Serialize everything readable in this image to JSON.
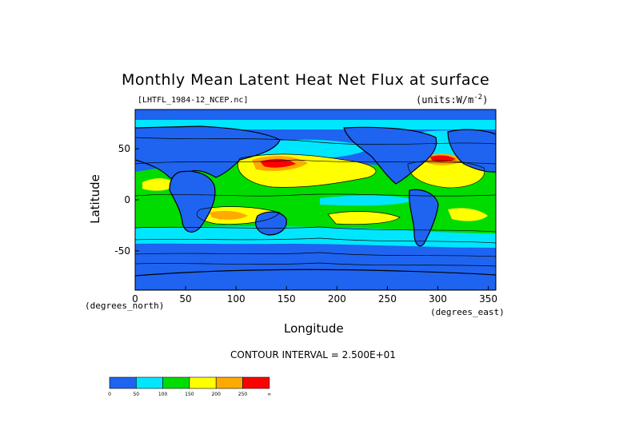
{
  "chart_data": {
    "type": "heatmap",
    "title": "Monthly Mean Latent Heat Net Flux at surface",
    "subtitle_left": "[LHTFL_1984-12_NCEP.nc]",
    "subtitle_right": "(units:W/m^2)",
    "units_prefix": "(units:W/m",
    "units_sup": "-2",
    "units_suffix": ")",
    "xlabel": "Longitude",
    "ylabel": "Latitude",
    "x_unit_label": "(degrees_east)",
    "y_unit_label": "(degrees_north)",
    "xlim": [
      0,
      357.5
    ],
    "ylim": [
      -88.5,
      88.5
    ],
    "x_ticks": [
      0,
      50,
      100,
      150,
      200,
      250,
      300,
      350
    ],
    "y_ticks": [
      50,
      0,
      -50
    ],
    "contour_interval_text": "CONTOUR INTERVAL = 2.500E+01",
    "colorbar": {
      "bins": [
        {
          "color": "#1e64f0",
          "from": 0,
          "to": 50
        },
        {
          "color": "#00e6ff",
          "from": 50,
          "to": 100
        },
        {
          "color": "#00dc00",
          "from": 100,
          "to": 150
        },
        {
          "color": "#ffff00",
          "from": 150,
          "to": 200
        },
        {
          "color": "#ffaa00",
          "from": 200,
          "to": 250
        },
        {
          "color": "#ff0000",
          "from": 250,
          "to": 300
        }
      ],
      "labels": [
        "0",
        "50",
        "100",
        "150",
        "200",
        "250",
        "∞"
      ]
    }
  }
}
